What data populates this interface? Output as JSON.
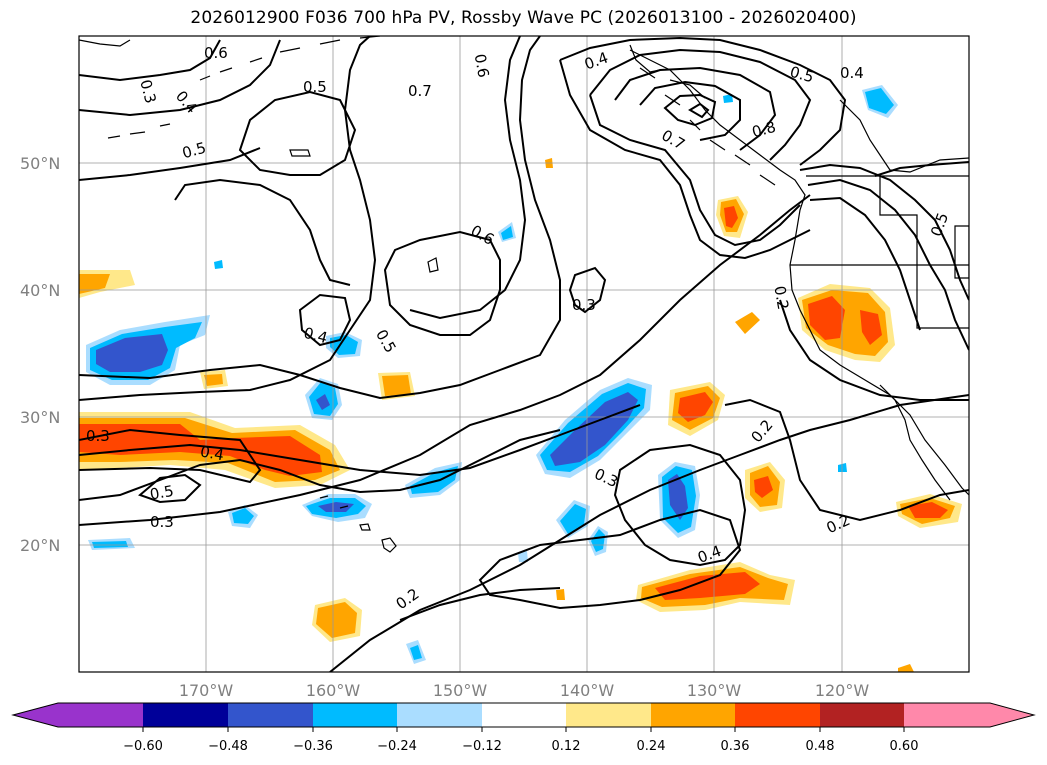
{
  "title": "2026012900 F036 700 hPa PV, Rossby Wave PC (2026013100 - 2026020400)",
  "map": {
    "lat_labels": [
      "50°N",
      "40°N",
      "30°N",
      "20°N"
    ],
    "lon_labels": [
      "170°W",
      "160°W",
      "150°W",
      "140°W",
      "130°W",
      "120°W"
    ],
    "contour_labels": [
      "0.6",
      "0.3",
      "0.4",
      "0.5",
      "0.5",
      "0.7",
      "0.6",
      "0.4",
      "0.5",
      "0.4",
      "0.7",
      "0.8",
      "0.5",
      "0.6",
      "0.4",
      "0.5",
      "0.3",
      "0.2",
      "0.3",
      "0.4",
      "0.5",
      "0.3",
      "0.2",
      "0.3",
      "0.4",
      "0.2",
      "0.2"
    ]
  },
  "colorbar": {
    "ticks": [
      "−0.60",
      "−0.48",
      "−0.36",
      "−0.24",
      "−0.12",
      "0.12",
      "0.24",
      "0.36",
      "0.48",
      "0.60"
    ],
    "colors": {
      "under": "#9933cc",
      "neg_060": "#000099",
      "neg_048": "#3355cc",
      "neg_036": "#00bbff",
      "neg_024": "#aaddff",
      "neutral": "#ffffff",
      "pos_012": "#ffe88a",
      "pos_024": "#ffa500",
      "pos_036": "#ff4500",
      "pos_048": "#b22222",
      "over": "#ff88aa"
    }
  }
}
